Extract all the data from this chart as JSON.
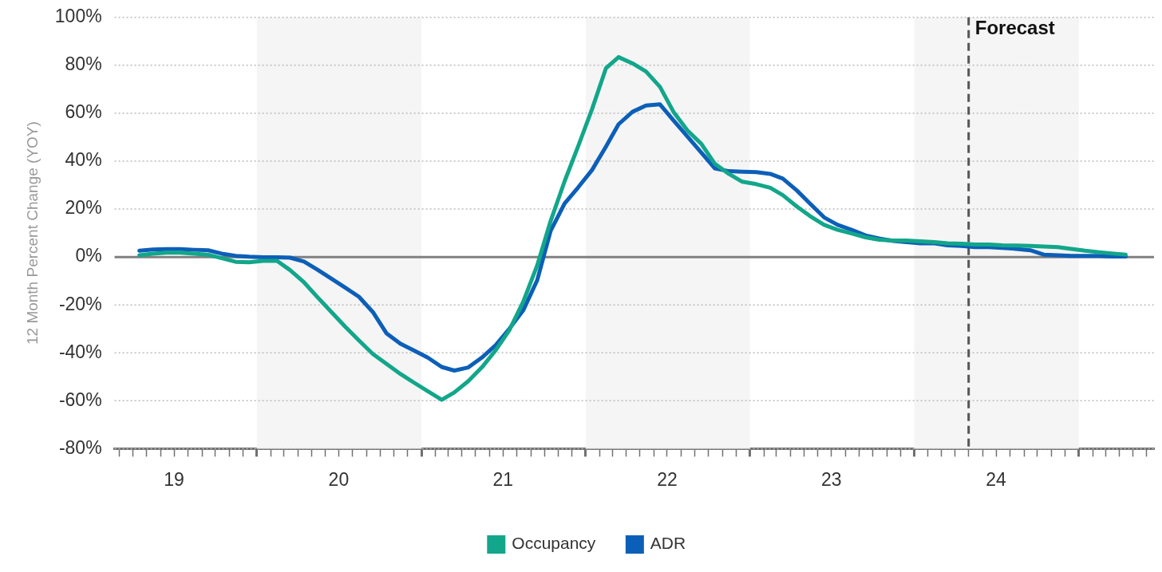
{
  "chart_data": {
    "type": "line",
    "ylabel": "12 Month Percent Change (YOY)",
    "x": [
      "2019-04-15",
      "2019-05-15",
      "2019-06-15",
      "2019-07-15",
      "2019-08-15",
      "2019-09-15",
      "2019-10-15",
      "2019-11-15",
      "2019-12-15",
      "2020-01-15",
      "2020-02-15",
      "2020-03-15",
      "2020-04-15",
      "2020-05-15",
      "2020-06-15",
      "2020-07-15",
      "2020-08-15",
      "2020-09-15",
      "2020-10-15",
      "2020-11-15",
      "2020-12-15",
      "2021-01-15",
      "2021-02-15",
      "2021-03-15",
      "2021-04-15",
      "2021-05-15",
      "2021-06-15",
      "2021-07-15",
      "2021-08-15",
      "2021-09-15",
      "2021-10-15",
      "2021-11-15",
      "2021-12-15",
      "2022-01-15",
      "2022-02-15",
      "2022-03-15",
      "2022-04-15",
      "2022-05-15",
      "2022-06-15",
      "2022-07-15",
      "2022-08-15",
      "2022-09-15",
      "2022-10-15",
      "2022-11-15",
      "2022-12-15",
      "2023-01-15",
      "2023-02-15",
      "2023-03-15",
      "2023-04-15",
      "2023-05-15",
      "2023-06-15",
      "2023-07-15",
      "2023-08-15",
      "2023-09-15",
      "2023-10-15",
      "2023-11-15",
      "2023-12-15",
      "2024-01-15",
      "2024-02-15",
      "2024-03-15",
      "2024-04-15",
      "2024-05-15",
      "2024-06-15",
      "2024-07-15",
      "2024-08-15",
      "2024-09-15",
      "2024-10-15",
      "2024-11-15",
      "2024-12-15",
      "2025-01-15",
      "2025-02-15",
      "2025-03-15",
      "2025-04-15"
    ],
    "series": [
      {
        "name": "Occupancy",
        "color": "#12a68a",
        "values": [
          0.7,
          1.4,
          1.8,
          1.8,
          1.4,
          0.9,
          -0.5,
          -2,
          -2.2,
          -1.6,
          -1.6,
          -5.5,
          -10.6,
          -16.8,
          -23,
          -29,
          -34.8,
          -40.5,
          -44.6,
          -48.8,
          -52.4,
          -56,
          -59.6,
          -56.5,
          -51.8,
          -46.1,
          -38.9,
          -30.6,
          -18.7,
          -3.6,
          15,
          31.6,
          46.1,
          61.7,
          78.8,
          83.4,
          80.8,
          77.4,
          71,
          60.6,
          52.8,
          47.2,
          38.9,
          34.7,
          31.4,
          30.4,
          28.9,
          25.8,
          21.1,
          17,
          13.4,
          11.3,
          9.8,
          8.2,
          7.2,
          6.9,
          6.9,
          6.5,
          6.2,
          5.7,
          5.5,
          5.2,
          5.2,
          4.9,
          4.8,
          4.6,
          4.4,
          4.1,
          3.4,
          2.6,
          2,
          1.5,
          1
        ]
      },
      {
        "name": "ADR",
        "color": "#0c5fb8",
        "values": [
          2.6,
          3.1,
          3.3,
          3.3,
          3,
          2.8,
          1.4,
          0.5,
          0.1,
          -0.1,
          -0.1,
          -0.3,
          -1.9,
          -5.3,
          -9.1,
          -12.7,
          -16.6,
          -23,
          -31.8,
          -36.2,
          -39,
          -42,
          -45.9,
          -47.4,
          -46.1,
          -42,
          -36.8,
          -30,
          -22.3,
          -9.8,
          10.9,
          22.3,
          29,
          36.3,
          46.1,
          55.4,
          60.6,
          63.2,
          63.7,
          57,
          50.3,
          43.5,
          37,
          35.8,
          35.6,
          35.4,
          34.7,
          32.7,
          27.8,
          22.2,
          16.5,
          13.4,
          11.3,
          9,
          7.7,
          6.7,
          6.2,
          5.7,
          5.7,
          4.9,
          4.6,
          4.1,
          4.1,
          3.8,
          3.4,
          2.8,
          1,
          0.7,
          0.5,
          0.5,
          0.5,
          0.2,
          0.2
        ]
      }
    ],
    "xlim": [
      "2019-02-19",
      "2025-06-17"
    ],
    "xticks": [
      {
        "value": "2019-03-01",
        "label": null
      },
      {
        "value": "2019-04-01",
        "label": null
      },
      {
        "value": "2019-05-01",
        "label": null
      },
      {
        "value": "2019-06-01",
        "label": null
      },
      {
        "value": "2019-07-01",
        "label": "19"
      },
      {
        "value": "2019-08-01",
        "label": null
      },
      {
        "value": "2019-09-01",
        "label": null
      },
      {
        "value": "2019-10-01",
        "label": null
      },
      {
        "value": "2019-11-01",
        "label": null
      },
      {
        "value": "2019-12-01",
        "label": null
      },
      {
        "value": "2020-01-01",
        "label": null
      },
      {
        "value": "2020-02-01",
        "label": null
      },
      {
        "value": "2020-03-01",
        "label": null
      },
      {
        "value": "2020-04-01",
        "label": null
      },
      {
        "value": "2020-05-01",
        "label": null
      },
      {
        "value": "2020-06-01",
        "label": null
      },
      {
        "value": "2020-07-01",
        "label": "20"
      },
      {
        "value": "2020-08-01",
        "label": null
      },
      {
        "value": "2020-09-01",
        "label": null
      },
      {
        "value": "2020-10-01",
        "label": null
      },
      {
        "value": "2020-11-01",
        "label": null
      },
      {
        "value": "2020-12-01",
        "label": null
      },
      {
        "value": "2021-01-01",
        "label": null
      },
      {
        "value": "2021-02-01",
        "label": null
      },
      {
        "value": "2021-03-01",
        "label": null
      },
      {
        "value": "2021-04-01",
        "label": null
      },
      {
        "value": "2021-05-01",
        "label": null
      },
      {
        "value": "2021-06-01",
        "label": null
      },
      {
        "value": "2021-07-01",
        "label": "21"
      },
      {
        "value": "2021-08-01",
        "label": null
      },
      {
        "value": "2021-09-01",
        "label": null
      },
      {
        "value": "2021-10-01",
        "label": null
      },
      {
        "value": "2021-11-01",
        "label": null
      },
      {
        "value": "2021-12-01",
        "label": null
      },
      {
        "value": "2022-01-01",
        "label": null
      },
      {
        "value": "2022-02-01",
        "label": null
      },
      {
        "value": "2022-03-01",
        "label": null
      },
      {
        "value": "2022-04-01",
        "label": null
      },
      {
        "value": "2022-05-01",
        "label": null
      },
      {
        "value": "2022-06-01",
        "label": null
      },
      {
        "value": "2022-07-01",
        "label": "22"
      },
      {
        "value": "2022-08-01",
        "label": null
      },
      {
        "value": "2022-09-01",
        "label": null
      },
      {
        "value": "2022-10-01",
        "label": null
      },
      {
        "value": "2022-11-01",
        "label": null
      },
      {
        "value": "2022-12-01",
        "label": null
      },
      {
        "value": "2023-01-01",
        "label": null
      },
      {
        "value": "2023-02-01",
        "label": null
      },
      {
        "value": "2023-03-01",
        "label": null
      },
      {
        "value": "2023-04-01",
        "label": null
      },
      {
        "value": "2023-05-01",
        "label": null
      },
      {
        "value": "2023-06-01",
        "label": null
      },
      {
        "value": "2023-07-01",
        "label": "23"
      },
      {
        "value": "2023-08-01",
        "label": null
      },
      {
        "value": "2023-09-01",
        "label": null
      },
      {
        "value": "2023-10-01",
        "label": null
      },
      {
        "value": "2023-11-01",
        "label": null
      },
      {
        "value": "2023-12-01",
        "label": null
      },
      {
        "value": "2024-01-01",
        "label": null
      },
      {
        "value": "2024-02-01",
        "label": null
      },
      {
        "value": "2024-03-01",
        "label": null
      },
      {
        "value": "2024-04-01",
        "label": null
      },
      {
        "value": "2024-05-01",
        "label": null
      },
      {
        "value": "2024-06-01",
        "label": null
      },
      {
        "value": "2024-07-01",
        "label": "24"
      },
      {
        "value": "2024-08-01",
        "label": null
      },
      {
        "value": "2024-09-01",
        "label": null
      },
      {
        "value": "2024-10-01",
        "label": null
      },
      {
        "value": "2024-11-01",
        "label": null
      },
      {
        "value": "2024-12-01",
        "label": null
      },
      {
        "value": "2025-01-01",
        "label": null
      },
      {
        "value": "2025-02-01",
        "label": null
      },
      {
        "value": "2025-03-01",
        "label": null
      },
      {
        "value": "2025-04-01",
        "label": null
      },
      {
        "value": "2025-05-01",
        "label": null
      },
      {
        "value": "2025-06-01",
        "label": null
      }
    ],
    "ylim": [
      -80,
      100
    ],
    "yticks": [
      {
        "value": -80,
        "label": "-80%"
      },
      {
        "value": -60,
        "label": "-60%"
      },
      {
        "value": -40,
        "label": "-40%"
      },
      {
        "value": -20,
        "label": "-20%"
      },
      {
        "value": 0,
        "label": "0%"
      },
      {
        "value": 20,
        "label": "20%"
      },
      {
        "value": 40,
        "label": "40%"
      },
      {
        "value": 60,
        "label": "60%"
      },
      {
        "value": 80,
        "label": "80%"
      },
      {
        "value": 100,
        "label": "100%"
      }
    ],
    "bands": [
      {
        "axis": "x",
        "from": "2020-01-01",
        "to": "2021-01-01",
        "color": "#f5f5f5"
      },
      {
        "axis": "x",
        "from": "2022-01-01",
        "to": "2023-01-01",
        "color": "#f5f5f5"
      },
      {
        "axis": "x",
        "from": "2024-01-01",
        "to": "2025-01-01",
        "color": "#f5f5f5"
      }
    ],
    "ref_lines": [
      {
        "axis": "y",
        "value": 0,
        "color": "#808080",
        "line_style": "solid"
      },
      {
        "axis": "x",
        "value": "2024-05-01",
        "label": "Forecast",
        "color": "#555555",
        "line_style": "dashed"
      }
    ],
    "grid": "y",
    "legend": "bottom",
    "marker": "none",
    "line_style": "solid"
  }
}
